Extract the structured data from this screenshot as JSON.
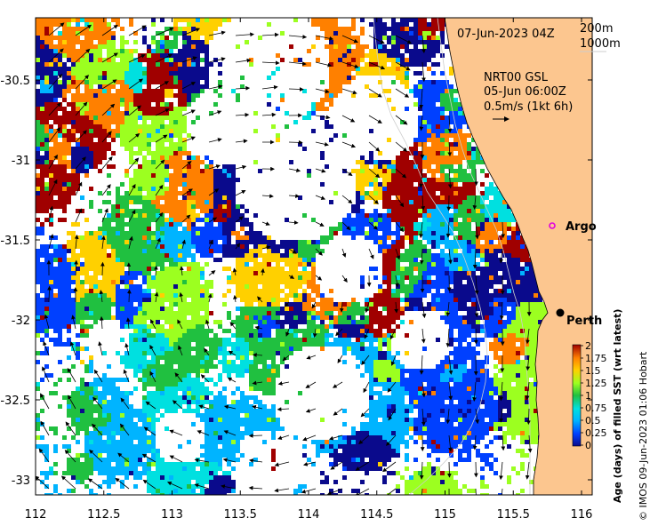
{
  "header": {
    "date": "07-Jun-2023 04Z",
    "depth_200": "200m",
    "depth_1000": "1000m",
    "product": "NRT00 GSL",
    "product_time": "05-Jun 06:00Z",
    "scale": "0.5m/s (1kt 6h)"
  },
  "places": [
    {
      "name": "Argo",
      "lon": 115.8,
      "lat": -31.47,
      "marker": "circle-magenta"
    },
    {
      "name": "Perth",
      "lon": 115.86,
      "lat": -31.95,
      "marker": "dot-black"
    }
  ],
  "colorbar": {
    "label": "Age (days) of filled SST (wrt latest)",
    "ticks": [
      "2",
      "1.75",
      "1.5",
      "1.25",
      "1",
      "0.75",
      "0.5",
      "0.25",
      "0"
    ],
    "colors": [
      "#0a0a8c",
      "#0040ff",
      "#00b4ff",
      "#00e0e0",
      "#20c040",
      "#9cff20",
      "#ffd000",
      "#ff8000",
      "#a00000"
    ]
  },
  "credit": "© IMOS 09-Jun-2023 01:06 Hobart",
  "chart_data": {
    "type": "heatmap",
    "x_ticks": [
      "112",
      "112.5",
      "113",
      "113.5",
      "114",
      "114.5",
      "115",
      "115.5",
      "116"
    ],
    "y_ticks": [
      "-30.5",
      "-31",
      "-31.5",
      "-32",
      "-32.5",
      "-33"
    ],
    "xlim": [
      112,
      116.1
    ],
    "ylim": [
      -33.1,
      -30.05
    ],
    "z_range": [
      0,
      2
    ]
  }
}
